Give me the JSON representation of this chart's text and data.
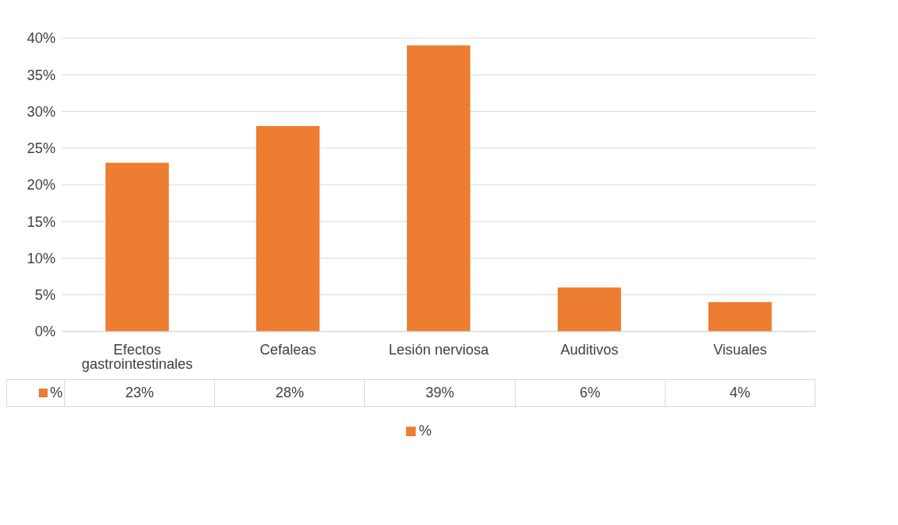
{
  "chart_data": {
    "type": "bar",
    "categories": [
      "Efectos gastrointestinales",
      "Cefaleas",
      "Lesión nerviosa",
      "Auditivos",
      "Visuales"
    ],
    "series": [
      {
        "name": "%",
        "color": "#ed7d31",
        "values": [
          23,
          28,
          39,
          6,
          4
        ],
        "value_labels": [
          "23%",
          "28%",
          "39%",
          "6%",
          "4%"
        ]
      }
    ],
    "ylim": [
      0,
      40
    ],
    "yticks": [
      {
        "value": 0,
        "label": "0%"
      },
      {
        "value": 5,
        "label": "5%"
      },
      {
        "value": 10,
        "label": "10%"
      },
      {
        "value": 15,
        "label": "15%"
      },
      {
        "value": 20,
        "label": "20%"
      },
      {
        "value": 25,
        "label": "25%"
      },
      {
        "value": 30,
        "label": "30%"
      },
      {
        "value": 35,
        "label": "35%"
      },
      {
        "value": 40,
        "label": "40%"
      }
    ],
    "grid": "y",
    "legend": "bottom"
  }
}
